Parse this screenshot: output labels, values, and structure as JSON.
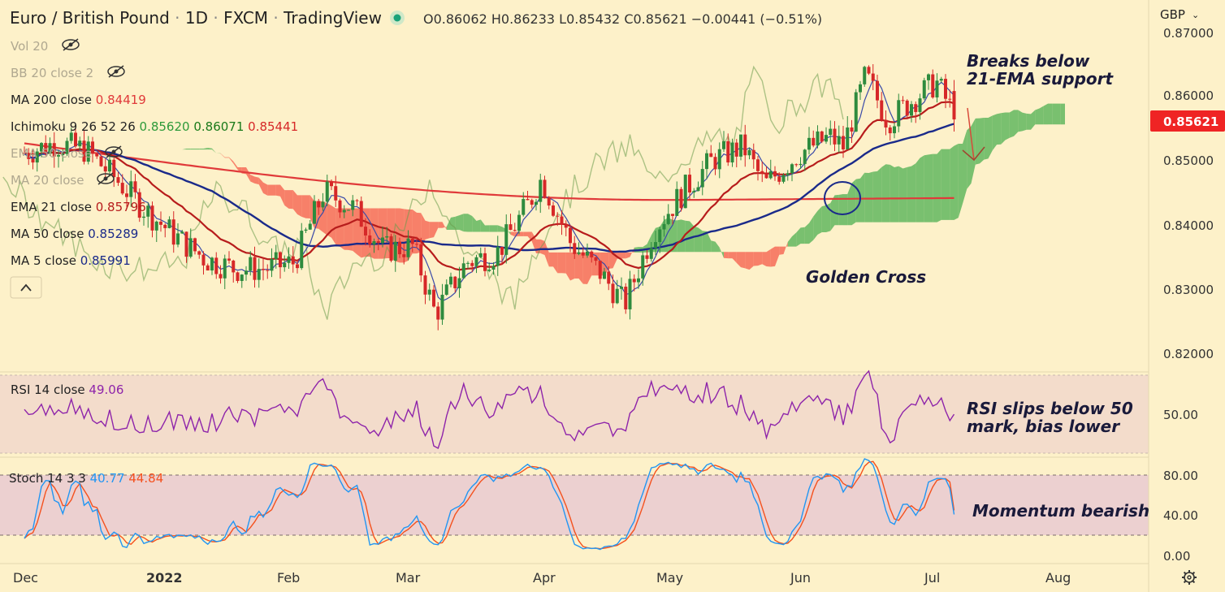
{
  "header": {
    "symbol": "Euro / British Pound",
    "interval": "1D",
    "exchange": "FXCM",
    "platform": "TradingView",
    "ohlc": {
      "o": "O0.86062",
      "h": "H0.86233",
      "l": "L0.85432",
      "c": "C0.85621",
      "chg": "−0.00441 (−0.51%)"
    },
    "currency": "GBP"
  },
  "legend": [
    {
      "name": "Vol 20",
      "value": "",
      "value2": "",
      "value3": "",
      "color": "#b0a890",
      "hidden": true
    },
    {
      "name": "BB 20 close 2",
      "value": "",
      "value2": "",
      "value3": "",
      "color": "#b0a890",
      "hidden": true
    },
    {
      "name": "MA 200 close",
      "value": "0.84419",
      "value2": "",
      "value3": "",
      "color": "#e03a3a",
      "hidden": false
    },
    {
      "name": "Ichimoku 9 26 52 26",
      "value": "0.85620",
      "value2": "0.86071",
      "value3": "0.85441",
      "color": "#2e9a3a",
      "hidden": false
    },
    {
      "name": "EMA 50 close",
      "value": "",
      "value2": "",
      "value3": "",
      "color": "#b0a890",
      "hidden": true
    },
    {
      "name": "MA 20 close",
      "value": "",
      "value2": "",
      "value3": "",
      "color": "#b0a890",
      "hidden": true
    },
    {
      "name": "EMA 21 close",
      "value": "0.85796",
      "value2": "",
      "value3": "",
      "color": "#b71c1c",
      "hidden": false
    },
    {
      "name": "MA 50 close",
      "value": "0.85289",
      "value2": "",
      "value3": "",
      "color": "#1a2a8a",
      "hidden": false
    },
    {
      "name": "MA 5 close",
      "value": "0.85991",
      "value2": "",
      "value3": "",
      "color": "#1a2a8a",
      "hidden": false
    }
  ],
  "price_axis": {
    "ticks": [
      "0.87000",
      "0.86000",
      "0.85000",
      "0.84000",
      "0.83000",
      "0.82000"
    ],
    "current": "0.85621"
  },
  "time_axis": {
    "labels": [
      "Dec",
      "2022",
      "Feb",
      "Mar",
      "Apr",
      "May",
      "Jun",
      "Jul",
      "Aug"
    ]
  },
  "annotations": {
    "breaks_line1": "Breaks below",
    "breaks_line2": "21-EMA support",
    "golden_cross": "Golden Cross",
    "rsi_line1": "RSI slips below 50",
    "rsi_line2": "mark, bias lower",
    "momentum": "Momentum bearish"
  },
  "rsi_panel": {
    "label": "RSI 14 close",
    "value": "49.06",
    "ticks": [
      "50.00"
    ]
  },
  "stoch_panel": {
    "label": "Stoch 14 3 3",
    "k": "40.77",
    "d": "44.84",
    "ticks": [
      "80.00",
      "40.00",
      "0.00"
    ]
  },
  "colors": {
    "bg": "#fdf1c9",
    "up": "#2e8b3e",
    "down": "#d62828",
    "ma200": "#e03a3a",
    "ema21": "#b71c1c",
    "ma50": "#1a2a8a",
    "rsi": "#8e24aa",
    "stochK": "#2196f3",
    "stochD": "#f4511e",
    "cloudBull": "#4caf50",
    "cloudBear": "#f44336"
  },
  "chart_data": {
    "type": "candlestick",
    "title": "Euro / British Pound · 1D · FXCM",
    "ylabel": "GBP",
    "ylim": [
      0.8155,
      0.8725
    ],
    "waypoints": [
      [
        "2021-12-01",
        0.851
      ],
      [
        "2021-12-08",
        0.8525
      ],
      [
        "2021-12-15",
        0.8515
      ],
      [
        "2021-12-22",
        0.847
      ],
      [
        "2021-12-29",
        0.842
      ],
      [
        "2022-01-05",
        0.838
      ],
      [
        "2022-01-12",
        0.8345
      ],
      [
        "2022-01-19",
        0.833
      ],
      [
        "2022-01-26",
        0.833
      ],
      [
        "2022-02-02",
        0.834
      ],
      [
        "2022-02-09",
        0.845
      ],
      [
        "2022-02-16",
        0.8425
      ],
      [
        "2022-02-23",
        0.836
      ],
      [
        "2022-03-02",
        0.8365
      ],
      [
        "2022-03-07",
        0.826
      ],
      [
        "2022-03-14",
        0.834
      ],
      [
        "2022-03-21",
        0.8355
      ],
      [
        "2022-03-28",
        0.843
      ],
      [
        "2022-03-31",
        0.847
      ],
      [
        "2022-04-07",
        0.837
      ],
      [
        "2022-04-14",
        0.8325
      ],
      [
        "2022-04-20",
        0.8275
      ],
      [
        "2022-04-27",
        0.839
      ],
      [
        "2022-05-04",
        0.845
      ],
      [
        "2022-05-11",
        0.85
      ],
      [
        "2022-05-18",
        0.852
      ],
      [
        "2022-05-23",
        0.846
      ],
      [
        "2022-05-31",
        0.851
      ],
      [
        "2022-06-07",
        0.8535
      ],
      [
        "2022-06-10",
        0.852
      ],
      [
        "2022-06-15",
        0.863
      ],
      [
        "2022-06-20",
        0.856
      ],
      [
        "2022-06-27",
        0.86
      ],
      [
        "2022-07-01",
        0.862
      ],
      [
        "2022-07-06",
        0.8562
      ]
    ],
    "indicators": {
      "ma200": 0.84419,
      "ema21": 0.85796,
      "ma50": 0.85289,
      "ma5": 0.85991,
      "ichimoku": [
        0.8562,
        0.86071,
        0.85441
      ]
    },
    "rsi": {
      "value": 49.06,
      "ylim": [
        30,
        75
      ]
    },
    "stochastic": {
      "k": 40.77,
      "d": 44.84,
      "ylim": [
        0,
        100
      ]
    }
  }
}
